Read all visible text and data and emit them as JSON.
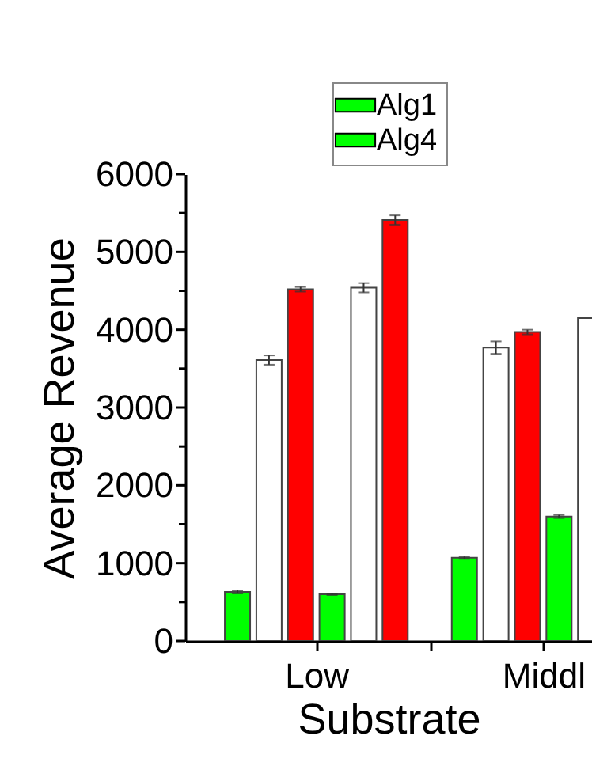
{
  "chart_data": {
    "type": "bar",
    "xlabel": "Substrate",
    "ylabel": "Average Revenue",
    "categories": [
      "Low",
      "Middl"
    ],
    "series": [
      {
        "name": "Alg1",
        "color": "#00ff00",
        "values": [
          630,
          1070
        ],
        "errors": [
          20,
          15
        ]
      },
      {
        "color": "#ffffff",
        "values": [
          3610,
          3770
        ],
        "errors": [
          60,
          80
        ]
      },
      {
        "color": "#ff0000",
        "values": [
          4520,
          3970
        ],
        "errors": [
          30,
          30
        ]
      },
      {
        "name": "Alg4",
        "color": "#00ff00",
        "values": [
          600,
          1600
        ],
        "errors": [
          10,
          20
        ]
      },
      {
        "color": "#ffffff",
        "values": [
          4540,
          4150
        ],
        "errors": [
          60,
          null
        ]
      },
      {
        "color": "#ff0000",
        "values": [
          5410,
          null
        ],
        "errors": [
          60,
          null
        ]
      }
    ],
    "ylim": [
      0,
      6000
    ],
    "yticks": [
      0,
      {
        "value": 500,
        "label": null
      },
      1000,
      {
        "value": 1500,
        "label": null
      },
      2000,
      {
        "value": 2500,
        "label": null
      },
      3000,
      {
        "value": 3500,
        "label": null
      },
      4000,
      {
        "value": 4500,
        "label": null
      },
      5000,
      {
        "value": 5500,
        "label": null
      },
      6000
    ],
    "legend": "top right",
    "grid": false
  }
}
